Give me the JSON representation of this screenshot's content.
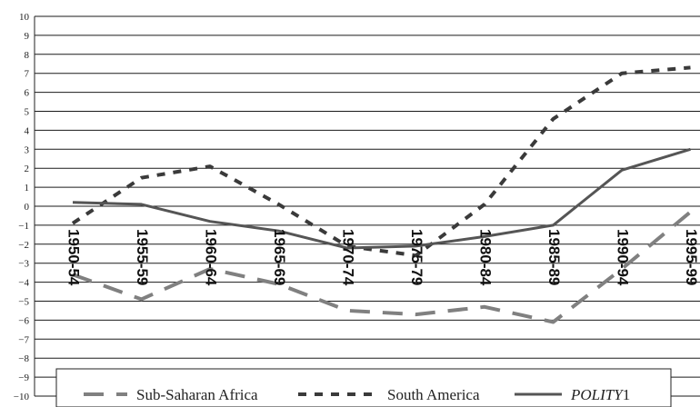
{
  "chart_data": {
    "type": "line",
    "categories": [
      "1950-54",
      "1955-59",
      "1960-64",
      "1965-69",
      "1970-74",
      "1975-79",
      "1980-84",
      "1985-89",
      "1990-94",
      "1995-99"
    ],
    "ylim": [
      -10,
      10
    ],
    "yticks": [
      10,
      9,
      8,
      7,
      6,
      5,
      4,
      3,
      2,
      1,
      0,
      -1,
      -2,
      -3,
      -4,
      -5,
      -6,
      -7,
      -8,
      -9,
      -10
    ],
    "grid": true,
    "legend_position": "bottom",
    "series": [
      {
        "name": "Sub-Saharan Africa",
        "style": "long-dash",
        "color": "#808080",
        "values": [
          -3.6,
          -4.9,
          -3.3,
          -4.1,
          -5.5,
          -5.7,
          -5.3,
          -6.1,
          -3.3,
          -0.3
        ]
      },
      {
        "name": "South America",
        "style": "short-dash",
        "color": "#3a3a3a",
        "values": [
          -0.9,
          1.5,
          2.1,
          0.1,
          -2.1,
          -2.6,
          0.1,
          4.6,
          7.0,
          7.3
        ]
      },
      {
        "name": "POLITY1",
        "name_italic": "POLITY",
        "name_suffix": "1",
        "style": "solid",
        "color": "#555555",
        "values": [
          0.2,
          0.1,
          -0.8,
          -1.3,
          -2.2,
          -2.1,
          -1.6,
          -1.0,
          1.9,
          3.0
        ]
      }
    ]
  }
}
